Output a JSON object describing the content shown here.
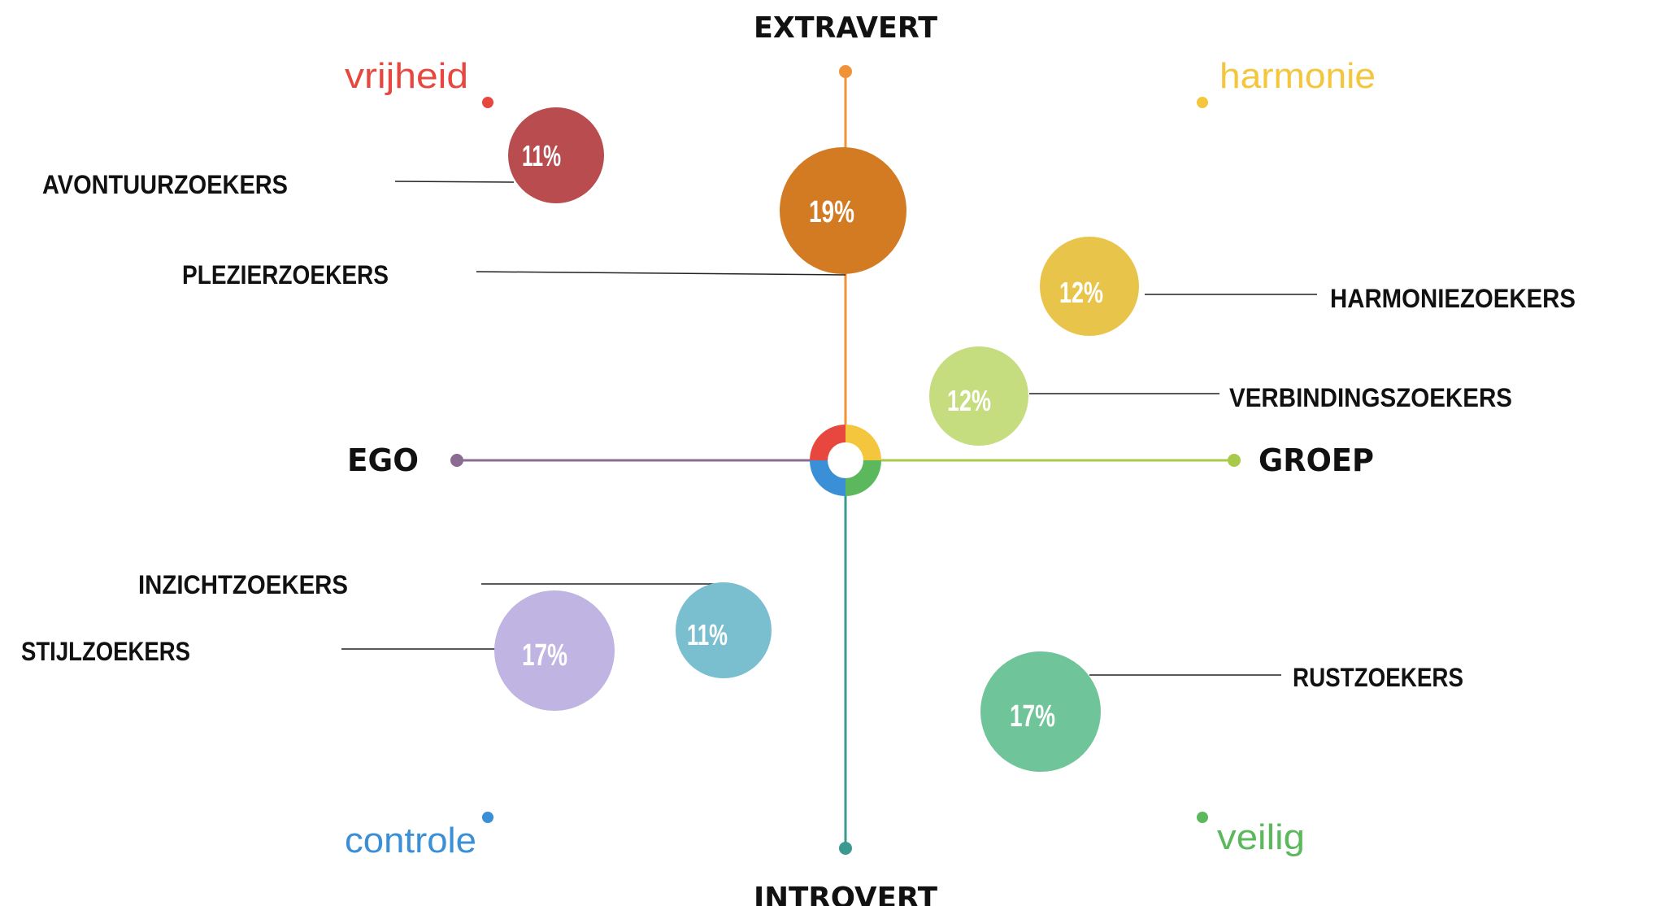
{
  "axes": {
    "top": "EXTRAVERT",
    "bottom": "INTROVERT",
    "left": "EGO",
    "right": "GROEP"
  },
  "corners": {
    "top_left": {
      "label": "vrijheid",
      "color": "#e8473f"
    },
    "top_right": {
      "label": "harmonie",
      "color": "#f4c63d"
    },
    "bottom_left": {
      "label": "controle",
      "color": "#3a8fd6"
    },
    "bottom_right": {
      "label": "veilig",
      "color": "#5cb85c"
    }
  },
  "axis_colors": {
    "top": "#f0923a",
    "bottom": "#3a9a8f",
    "left": "#8a6b91",
    "right": "#a9c94a"
  },
  "segments": [
    {
      "name": "AVONTUURZOEKERS",
      "percent": "11%",
      "color": "#b84c4e"
    },
    {
      "name": "PLEZIERZOEKERS",
      "percent": "19%",
      "color": "#d27b22"
    },
    {
      "name": "HARMONIEZOEKERS",
      "percent": "12%",
      "color": "#e8c54a"
    },
    {
      "name": "VERBINDINGSZOEKERS",
      "percent": "12%",
      "color": "#c5dc7f"
    },
    {
      "name": "INZICHTZOEKERS",
      "percent": "11%",
      "color": "#79bfcf"
    },
    {
      "name": "STIJLZOEKERS",
      "percent": "17%",
      "color": "#c0b4e2"
    },
    {
      "name": "RUSTZOEKERS",
      "percent": "17%",
      "color": "#6fc599"
    }
  ]
}
